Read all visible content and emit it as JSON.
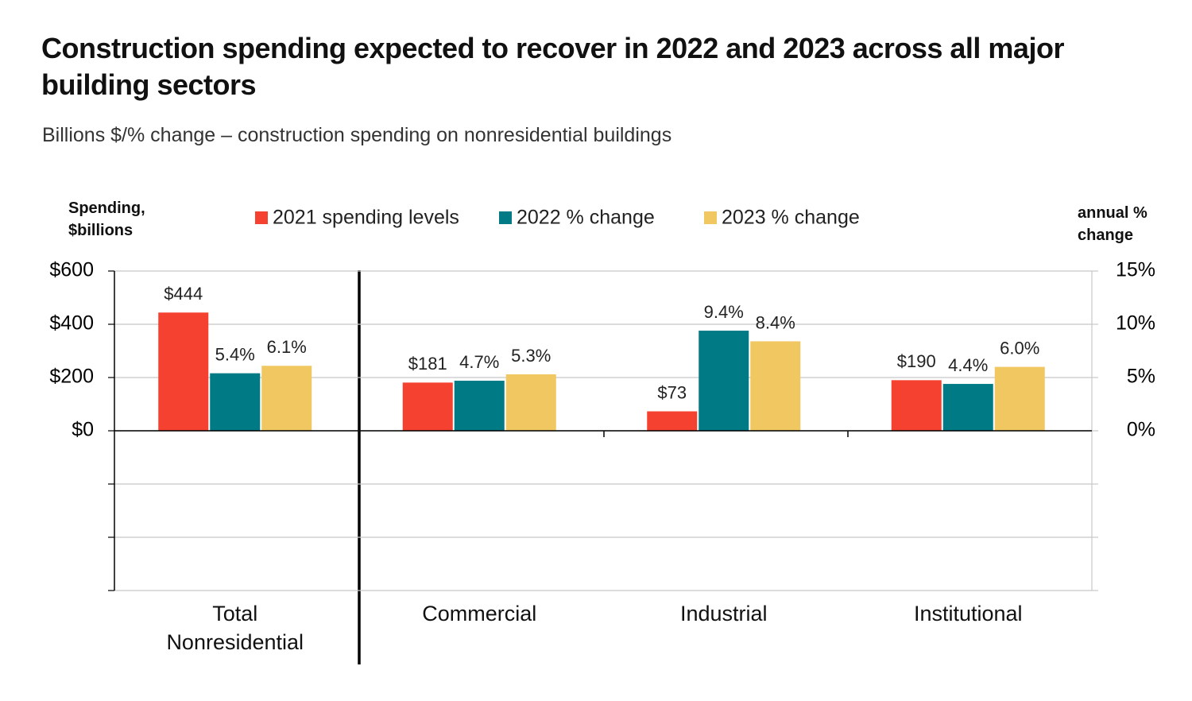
{
  "chart_data": {
    "type": "bar",
    "title": "Construction spending expected to recover in 2022 and 2023 across all major building sectors",
    "subtitle": "Billions $/% change – construction spending on nonresidential buildings",
    "y_label": "Spending, $billions",
    "y2_label": "annual % change",
    "categories": [
      "Total Nonresidential",
      "Commercial",
      "Industrial",
      "Institutional"
    ],
    "series": [
      {
        "name": "2021 spending levels",
        "color": "#f5412f",
        "axis": "y",
        "values": [
          444,
          181,
          73,
          190
        ],
        "value_labels": [
          "$444",
          "$181",
          "$73",
          "$190"
        ]
      },
      {
        "name": "2022 % change",
        "color": "#007b86",
        "axis": "y2",
        "values": [
          5.4,
          4.7,
          9.4,
          4.4
        ],
        "value_labels": [
          "5.4%",
          "4.7%",
          "9.4%",
          "4.4%"
        ]
      },
      {
        "name": "2023 % change",
        "color": "#f0c760",
        "axis": "y2",
        "values": [
          6.1,
          5.3,
          8.4,
          6.0
        ],
        "value_labels": [
          "6.1%",
          "5.3%",
          "8.4%",
          "6.0%"
        ]
      }
    ],
    "ylim": [
      -600,
      600
    ],
    "yticks": [
      {
        "value": 600,
        "label": "$600"
      },
      {
        "value": 400,
        "label": "$400"
      },
      {
        "value": 200,
        "label": "$200"
      },
      {
        "value": 0,
        "label": "$0"
      },
      {
        "value": -200,
        "label": null
      },
      {
        "value": -400,
        "label": null
      },
      {
        "value": -600,
        "label": null
      }
    ],
    "y2lim": [
      -15,
      15
    ],
    "y2ticks": [
      {
        "value": 15,
        "label": "15%"
      },
      {
        "value": 10,
        "label": "10%"
      },
      {
        "value": 5,
        "label": "5%"
      },
      {
        "value": 0,
        "label": "0%"
      },
      {
        "value": -5,
        "label": null
      },
      {
        "value": -10,
        "label": null
      },
      {
        "value": -15,
        "label": null
      }
    ],
    "grid": true,
    "legend": "top"
  }
}
